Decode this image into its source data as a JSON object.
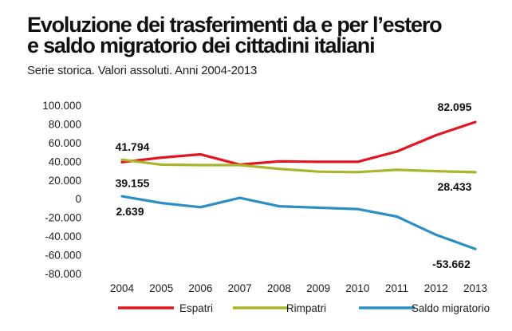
{
  "title_line1": "Evoluzione dei trasferimenti da e per l’estero",
  "title_line2": "e saldo migratorio dei cittadini italiani",
  "subtitle": "Serie storica. Valori assoluti. Anni 2004-2013",
  "chart_data": {
    "type": "line",
    "title": "Evoluzione dei trasferimenti da e per l’estero e saldo migratorio dei cittadini italiani",
    "subtitle": "Serie storica. Valori assoluti. Anni 2004-2013",
    "xlabel": "",
    "ylabel": "",
    "x": [
      2004,
      2005,
      2006,
      2007,
      2008,
      2009,
      2010,
      2011,
      2012,
      2013
    ],
    "ylim": [
      -80000,
      100000
    ],
    "yticks": [
      100000,
      80000,
      60000,
      40000,
      20000,
      0,
      -20000,
      -40000,
      -60000,
      -80000
    ],
    "ytick_labels": [
      "100.000",
      "80.000",
      "60.000",
      "40.000",
      "20.000",
      "0",
      "-20.000",
      "-40.000",
      "-60.000",
      "-80.000"
    ],
    "grid": false,
    "legend_position": "bottom",
    "series": [
      {
        "name": "Espatri",
        "color": "#e3151f",
        "values": [
          39155,
          44000,
          47500,
          36500,
          40000,
          39500,
          39500,
          50500,
          68000,
          82095
        ]
      },
      {
        "name": "Rimpatri",
        "color": "#a8b62c",
        "values": [
          41794,
          36500,
          36000,
          36000,
          32000,
          29000,
          28500,
          31000,
          29500,
          28433
        ]
      },
      {
        "name": "Saldo migratorio",
        "color": "#2a8fc4",
        "values": [
          2639,
          -4500,
          -9000,
          1000,
          -8000,
          -9500,
          -11000,
          -19000,
          -38500,
          -53662
        ]
      }
    ],
    "data_labels": [
      {
        "text": "82.095",
        "series": "Espatri",
        "x": 2013
      },
      {
        "text": "41.794",
        "series": "Rimpatri",
        "x": 2004
      },
      {
        "text": "39.155",
        "series": "Espatri",
        "x": 2004
      },
      {
        "text": "28.433",
        "series": "Rimpatri",
        "x": 2013
      },
      {
        "text": "2.639",
        "series": "Saldo migratorio",
        "x": 2004
      },
      {
        "text": "-53.662",
        "series": "Saldo migratorio",
        "x": 2013
      }
    ]
  }
}
